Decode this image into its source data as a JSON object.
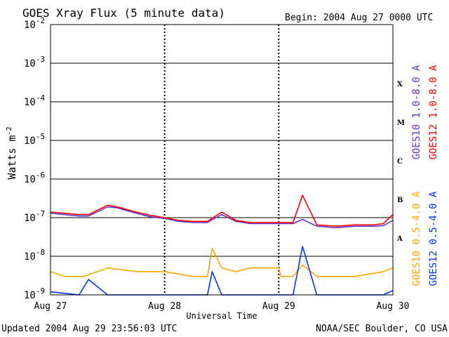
{
  "header": {
    "title": "GOES Xray Flux (5 minute data)",
    "begin": "Begin:  2004 Aug 27 0000 UTC"
  },
  "footer": {
    "updated": "Updated 2004 Aug 29 23:56:03 UTC",
    "credit": "NOAA/SEC Boulder, CO USA"
  },
  "chart_data": {
    "type": "line",
    "title": "GOES Xray Flux (5 minute data)",
    "xlabel": "Universal Time",
    "ylabel": "Watts m-2",
    "yscale": "log",
    "ylim": [
      1e-09,
      0.01
    ],
    "xlim_days": [
      0,
      3
    ],
    "x_ticks": [
      "Aug 27",
      "Aug 28",
      "Aug 29",
      "Aug 30"
    ],
    "y_ticks": [
      {
        "base": "10",
        "exp": "-2",
        "value": 0.01
      },
      {
        "base": "10",
        "exp": "-3",
        "value": 0.001
      },
      {
        "base": "10",
        "exp": "-4",
        "value": 0.0001
      },
      {
        "base": "10",
        "exp": "-5",
        "value": 1e-05
      },
      {
        "base": "10",
        "exp": "-6",
        "value": 1e-06
      },
      {
        "base": "10",
        "exp": "-7",
        "value": 1e-07
      },
      {
        "base": "10",
        "exp": "-8",
        "value": 1e-08
      },
      {
        "base": "10",
        "exp": "-9",
        "value": 1e-09
      }
    ],
    "flare_classes": [
      {
        "label": "X",
        "value": 0.0003
      },
      {
        "label": "M",
        "value": 3e-05
      },
      {
        "label": "C",
        "value": 3e-06
      },
      {
        "label": "B",
        "value": 3e-07
      },
      {
        "label": "A",
        "value": 3e-08
      }
    ],
    "grid": "horizontal at decades",
    "legend_position": "right (vertical)",
    "series": [
      {
        "name": "GOES10 1.0-8.0 A",
        "color": "#6633cc",
        "x": [
          "Aug 27 00:00",
          "Aug 27 06:00",
          "Aug 27 08:00",
          "Aug 27 12:00",
          "Aug 27 14:00",
          "Aug 27 18:00",
          "Aug 27 21:00",
          "Aug 28 00:00",
          "Aug 28 03:00",
          "Aug 28 06:00",
          "Aug 28 09:00",
          "Aug 28 12:00",
          "Aug 28 15:00",
          "Aug 28 18:00",
          "Aug 28 21:00",
          "Aug 29 00:00",
          "Aug 29 03:00",
          "Aug 29 05:00",
          "Aug 29 08:00",
          "Aug 29 12:00",
          "Aug 29 16:00",
          "Aug 29 20:00",
          "Aug 29 22:00",
          "Aug 29 24:00"
        ],
        "y": [
          1.3e-07,
          1.1e-07,
          1.1e-07,
          1.9e-07,
          1.8e-07,
          1.3e-07,
          1.05e-07,
          9.5e-08,
          8e-08,
          7.5e-08,
          7.5e-08,
          1.2e-07,
          8e-08,
          7e-08,
          7e-08,
          7e-08,
          7e-08,
          9e-08,
          6e-08,
          5.5e-08,
          6e-08,
          6e-08,
          6.2e-08,
          8.5e-08
        ]
      },
      {
        "name": "GOES12 1.0-8.0 A",
        "color": "#ff0000",
        "x": [
          "Aug 27 00:00",
          "Aug 27 06:00",
          "Aug 27 08:00",
          "Aug 27 12:00",
          "Aug 27 14:00",
          "Aug 27 18:00",
          "Aug 27 21:00",
          "Aug 28 00:00",
          "Aug 28 03:00",
          "Aug 28 06:00",
          "Aug 28 09:00",
          "Aug 28 12:00",
          "Aug 28 15:00",
          "Aug 28 18:00",
          "Aug 28 21:00",
          "Aug 29 00:00",
          "Aug 29 03:00",
          "Aug 29 05:00",
          "Aug 29 08:00",
          "Aug 29 12:00",
          "Aug 29 16:00",
          "Aug 29 20:00",
          "Aug 29 22:00",
          "Aug 29 24:00"
        ],
        "y": [
          1.4e-07,
          1.2e-07,
          1.2e-07,
          2.1e-07,
          1.9e-07,
          1.4e-07,
          1.15e-07,
          1e-07,
          8.5e-08,
          8e-08,
          8e-08,
          1.4e-07,
          8.5e-08,
          7.5e-08,
          7.5e-08,
          7.5e-08,
          7.5e-08,
          3.8e-07,
          6.5e-08,
          6e-08,
          6.5e-08,
          6.5e-08,
          7e-08,
          1.2e-07
        ]
      },
      {
        "name": "GOES10 0.5-4.0 A",
        "color": "#ffa500",
        "x": [
          "Aug 27 00:00",
          "Aug 27 03:00",
          "Aug 27 07:00",
          "Aug 27 12:00",
          "Aug 27 18:00",
          "Aug 28 00:00",
          "Aug 28 06:00",
          "Aug 28 09:00",
          "Aug 28 10:00",
          "Aug 28 12:00",
          "Aug 28 15:00",
          "Aug 28 18:00",
          "Aug 28 24:00",
          "Aug 29 00:30",
          "Aug 29 03:00",
          "Aug 29 05:00",
          "Aug 29 08:00",
          "Aug 29 16:00",
          "Aug 29 22:00",
          "Aug 29 24:00"
        ],
        "y": [
          4e-09,
          3e-09,
          3e-09,
          5e-09,
          4e-09,
          4e-09,
          3e-09,
          3e-09,
          1.6e-08,
          5e-09,
          4e-09,
          5e-09,
          5e-09,
          3e-09,
          3e-09,
          6e-09,
          3e-09,
          3e-09,
          4e-09,
          5e-09
        ]
      },
      {
        "name": "GOES12 0.5-4.0 A",
        "color": "#0033ff",
        "x": [
          "Aug 27 00:00",
          "Aug 27 06:00",
          "Aug 27 08:00",
          "Aug 27 12:00",
          "Aug 28 06:00",
          "Aug 28 09:00",
          "Aug 28 10:00",
          "Aug 28 12:00",
          "Aug 29 03:00",
          "Aug 29 05:00",
          "Aug 29 08:00",
          "Aug 29 22:00",
          "Aug 29 24:00"
        ],
        "y": [
          1.2e-09,
          1e-09,
          2.5e-09,
          1e-09,
          1e-09,
          1e-09,
          4e-09,
          1e-09,
          1e-09,
          1.8e-08,
          1e-09,
          1e-09,
          1.3e-09
        ]
      }
    ]
  }
}
